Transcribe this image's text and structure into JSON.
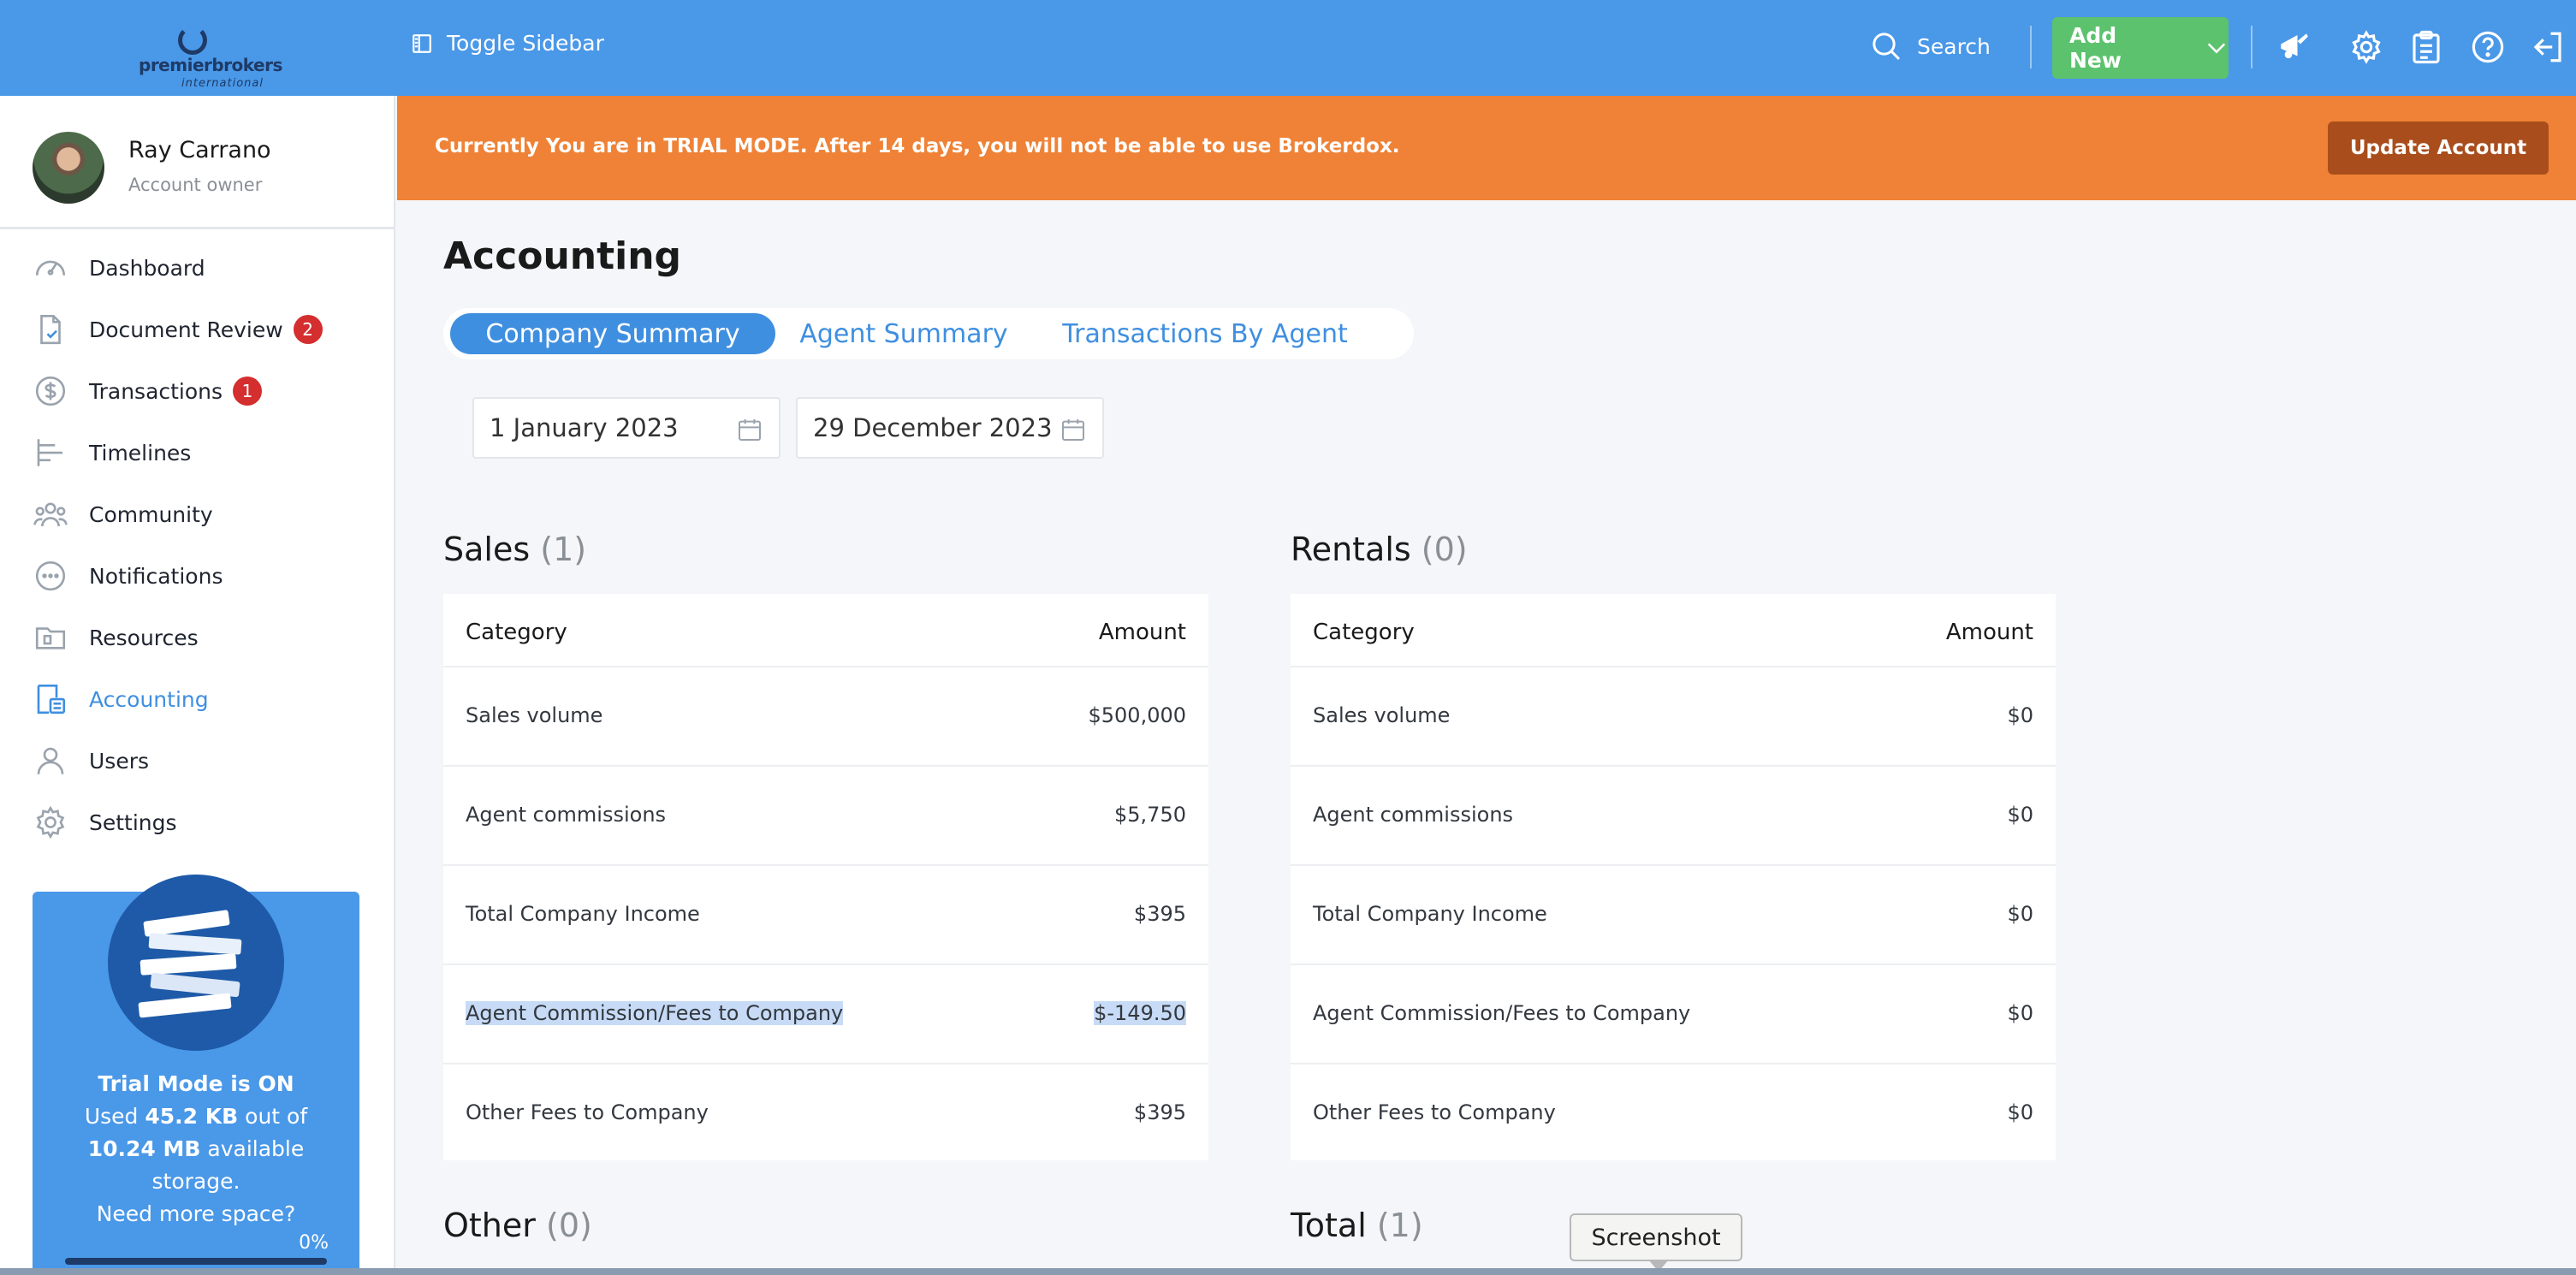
{
  "header": {
    "logo_brand": "premierbrokers",
    "logo_sub": "international",
    "toggle_label": "Toggle Sidebar",
    "search_label": "Search",
    "add_new_label": "Add New",
    "icons": [
      "megaphone-icon",
      "gear-icon",
      "clipboard-icon",
      "help-icon",
      "logout-icon"
    ]
  },
  "user": {
    "name": "Ray Carrano",
    "role": "Account owner"
  },
  "sidebar": {
    "items": [
      {
        "label": "Dashboard",
        "icon": "gauge-icon"
      },
      {
        "label": "Document Review",
        "icon": "document-check-icon",
        "badge": "2"
      },
      {
        "label": "Transactions",
        "icon": "dollar-icon",
        "badge": "1"
      },
      {
        "label": "Timelines",
        "icon": "timeline-icon"
      },
      {
        "label": "Community",
        "icon": "people-icon"
      },
      {
        "label": "Notifications",
        "icon": "chat-bubble-icon"
      },
      {
        "label": "Resources",
        "icon": "folder-icon"
      },
      {
        "label": "Accounting",
        "icon": "calculator-icon",
        "active": true
      },
      {
        "label": "Users",
        "icon": "user-icon"
      },
      {
        "label": "Settings",
        "icon": "gear-icon"
      }
    ],
    "trial": {
      "title": "Trial Mode is ON",
      "used_prefix": "Used",
      "used_value": "45.2 KB",
      "used_suffix": "out of",
      "total_value": "10.24 MB",
      "total_suffix": "available",
      "storage_word": "storage.",
      "more_space": "Need more space?",
      "percent": "0%",
      "fill_fraction": 0
    }
  },
  "banner": {
    "text": "Currently You are in TRIAL MODE. After 14 days, you will not be able to use Brokerdox.",
    "button": "Update Account"
  },
  "page": {
    "title": "Accounting",
    "tabs": [
      "Company Summary",
      "Agent Summary",
      "Transactions By Agent"
    ],
    "active_tab": 0,
    "date_from": "1 January 2023",
    "date_to": "29 December 2023"
  },
  "sales": {
    "title": "Sales",
    "count": "(1)",
    "header_category": "Category",
    "header_amount": "Amount",
    "rows": [
      {
        "category": "Sales volume",
        "amount": "$500,000"
      },
      {
        "category": "Agent commissions",
        "amount": "$5,750"
      },
      {
        "category": "Total Company Income",
        "amount": "$395"
      },
      {
        "category": "Agent Commission/Fees to Company",
        "amount": "$-149.50"
      },
      {
        "category": "Other Fees to Company",
        "amount": "$395"
      }
    ]
  },
  "rentals": {
    "title": "Rentals",
    "count": "(0)",
    "header_category": "Category",
    "header_amount": "Amount",
    "rows": [
      {
        "category": "Sales volume",
        "amount": "$0"
      },
      {
        "category": "Agent commissions",
        "amount": "$0"
      },
      {
        "category": "Total Company Income",
        "amount": "$0"
      },
      {
        "category": "Agent Commission/Fees to Company",
        "amount": "$0"
      },
      {
        "category": "Other Fees to Company",
        "amount": "$0"
      }
    ]
  },
  "other": {
    "title": "Other",
    "count": "(0)"
  },
  "total": {
    "title": "Total",
    "count": "(1)"
  },
  "tooltip": {
    "text": "Screenshot"
  },
  "colors": {
    "primary": "#4a98e8",
    "banner": "#ef8236",
    "add_new": "#5cc26e",
    "badge": "#d42e2e"
  }
}
